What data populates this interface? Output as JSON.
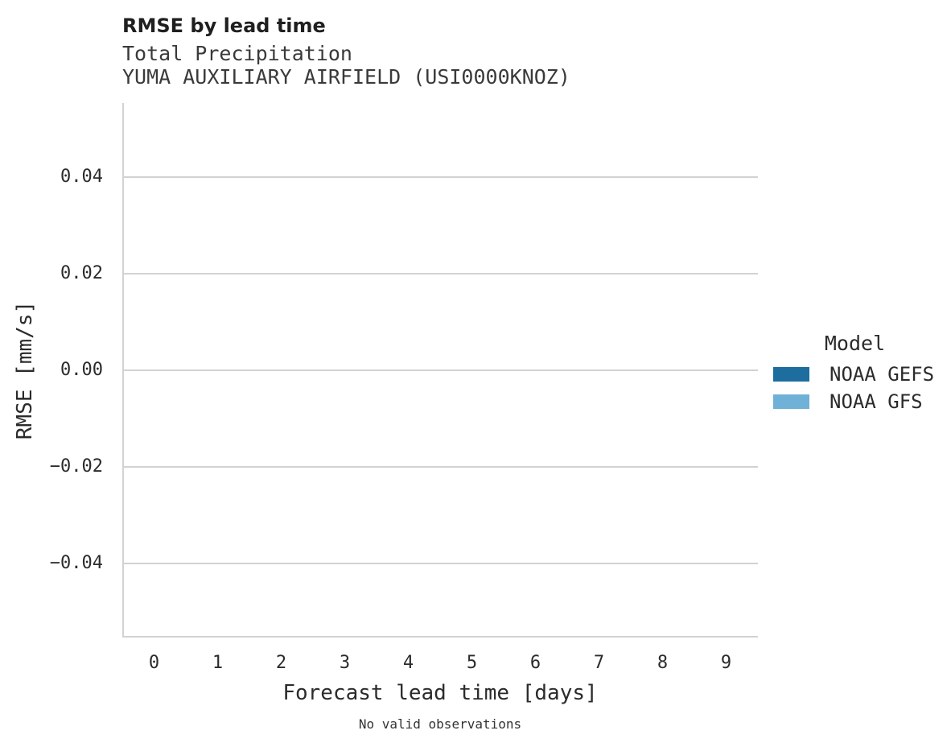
{
  "chart_data": {
    "type": "line",
    "title": "RMSE by lead time",
    "subtitle": "Total Precipitation",
    "station": "YUMA AUXILIARY AIRFIELD (USI0000KNOZ)",
    "xlabel": "Forecast lead time [days]",
    "ylabel": "RMSE [mm/s]",
    "note": "No valid observations",
    "xlim": [
      -0.5,
      9.5
    ],
    "ylim": [
      -0.0553,
      0.0553
    ],
    "x_ticks": [
      0,
      1,
      2,
      3,
      4,
      5,
      6,
      7,
      8,
      9
    ],
    "y_ticks": [
      0.04,
      0.02,
      0.0,
      -0.02,
      -0.04
    ],
    "y_tick_labels": [
      "0.04",
      "0.02",
      "0.00",
      "−0.02",
      "−0.04"
    ],
    "grid": "horizontal gridlines only, no top/right spines",
    "legend": {
      "title": "Model",
      "position": "right",
      "entries": [
        {
          "label": "NOAA GEFS",
          "color": "#1d6d9e"
        },
        {
          "label": "NOAA GFS",
          "color": "#70b1d8"
        }
      ]
    },
    "series": [
      {
        "name": "NOAA GEFS",
        "color": "#1d6d9e",
        "x": [],
        "values": []
      },
      {
        "name": "NOAA GFS",
        "color": "#70b1d8",
        "x": [],
        "values": []
      }
    ]
  },
  "colors": {
    "background": "#ffffff",
    "grid": "#d2d2d2",
    "axis": "#d2d2d2",
    "title_text": "#1f1f1f",
    "subtitle_text": "#3a3a3a",
    "tick_text": "#2b2b2b",
    "note_text": "#333333"
  }
}
